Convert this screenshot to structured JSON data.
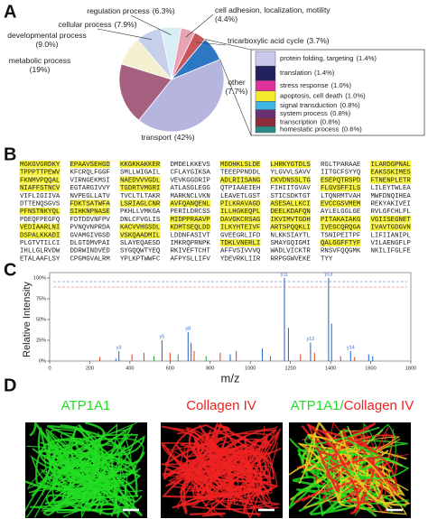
{
  "panel_labels": [
    "A",
    "B",
    "C",
    "D"
  ],
  "chart_data": [
    {
      "type": "pie",
      "categories": [
        "regulation process",
        "cell adhesion, localization, motility",
        "tricarboxylic acid cycle",
        "other",
        "transport",
        "metabolic process",
        "developmental process",
        "cellular process"
      ],
      "values": [
        6.3,
        4.4,
        3.7,
        7.7,
        42,
        19,
        9.0,
        7.9
      ],
      "value_labels": [
        "(6.3%)",
        "(4.4%)",
        "(3.7%)",
        "(7.7%)",
        "(42%)",
        "(19%)",
        "(9.0%)",
        "(7.9%)"
      ],
      "colors": [
        "#d9eef4",
        "#e7a2b4",
        "#c8545c",
        "#2d78c4",
        "#b6b5df",
        "#a4607e",
        "#f4f0d0",
        "#c7d0ea"
      ]
    },
    {
      "type": "stacked-bar",
      "categories": [
        "protein folding, targeting",
        "translation",
        "stress response",
        "apoptosis, cell death",
        "signal transduction",
        "system process",
        "transcription",
        "homestatic process"
      ],
      "values": [
        1.4,
        1.4,
        1.0,
        1.0,
        0.8,
        0.8,
        0.8,
        0.6
      ],
      "value_labels": [
        "(1.4%)",
        "(1.4%)",
        "(1.0%)",
        "(1.0%)",
        "(0.8%)",
        "(0.8%)",
        "(0.8%)",
        "(0.6%)"
      ],
      "colors": [
        "#c9c9ee",
        "#23225e",
        "#e0329c",
        "#f5e92c",
        "#3cb7e3",
        "#6b2f74",
        "#8e2c3c",
        "#2a8a8a"
      ]
    },
    {
      "type": "bar",
      "x_label": "m/z",
      "y_label": "Relative Intensity",
      "x": [
        250,
        330,
        345,
        410,
        470,
        520,
        560,
        600,
        640,
        690,
        705,
        720,
        780,
        850,
        900,
        930,
        1060,
        1100,
        1170,
        1190,
        1250,
        1300,
        1320,
        1390,
        1405,
        1450,
        1500,
        1520,
        1590,
        1610
      ],
      "values": [
        5,
        3,
        12,
        8,
        10,
        6,
        25,
        10,
        8,
        35,
        22,
        12,
        6,
        10,
        8,
        12,
        15,
        6,
        100,
        40,
        8,
        22,
        10,
        100,
        45,
        6,
        12,
        5,
        8,
        6
      ],
      "colors": [
        "#e05030",
        "#2f6fd0",
        "#2f6fd0",
        "#e05030",
        "#e05030",
        "#39a845",
        "#2f6fd0",
        "#e05030",
        "#39a845",
        "#2f6fd0",
        "#2f6fd0",
        "#e05030",
        "#39a845",
        "#e05030",
        "#2f6fd0",
        "#e05030",
        "#2f6fd0",
        "#e05030",
        "#2f6fd0",
        "#2f6fd0",
        "#e05030",
        "#2f6fd0",
        "#e05030",
        "#2f6fd0",
        "#2f6fd0",
        "#e05030",
        "#2f6fd0",
        "#e05030",
        "#2f6fd0",
        "#2f6fd0"
      ],
      "peak_labels": [
        null,
        null,
        "y3",
        null,
        null,
        null,
        "y5",
        null,
        null,
        "y8",
        null,
        null,
        null,
        null,
        null,
        null,
        null,
        null,
        "y11",
        null,
        null,
        "y12",
        null,
        "y13",
        null,
        null,
        "y14",
        null,
        null,
        null
      ],
      "xlim": [
        0,
        1800
      ],
      "xticks": [
        0,
        200,
        400,
        600,
        800,
        1000,
        1200,
        1400,
        1600,
        1800
      ],
      "ylim": [
        0,
        100
      ],
      "yticks": [
        {
          "value": 0,
          "label": "0%"
        },
        {
          "value": 25,
          "label": "25%"
        },
        {
          "value": 50,
          "label": "50%"
        },
        {
          "value": 75,
          "label": "75%"
        },
        {
          "value": 100,
          "label": "100%"
        }
      ]
    }
  ],
  "sequence": {
    "rows": [
      [
        "MGKGVGRDKY",
        "EPAAVSEHGD",
        "KKGKKAKKER",
        "DMDELKKEVS",
        "MDDHKLSLDE",
        "LHRKYGTDLS",
        "RGLTPARAAE",
        "ILARDGPNAL"
      ],
      [
        "TPPPTTPEWV",
        "KFCRQLFGGF",
        "SMLLWIGAIL",
        "CFLAYGIKSA",
        "TEEEPPNDDL",
        "YLGVVLSAVV",
        "IITGCFSYYQ",
        "EAKSSKIMES"
      ],
      [
        "FKNMVPQQAL",
        "VIRNGEKMSI",
        "NAEDVVVGDL",
        "VEVKGGDRIP",
        "ADLRIISANG",
        "CKVDNSSLTG",
        "ESEPQTRSPD",
        "FTNENPLETR"
      ],
      [
        "NIAFFSTNCV",
        "EGTARGIVVY",
        "TGDRTVMGRI",
        "ATLASGLEGG",
        "QTPIAAEIEH",
        "FIHIITGVAV",
        "FLGVSFFILS",
        "LILEYTWLEA"
      ],
      [
        "VIFLIGIIVA",
        "NVPEGLLATV",
        "TVCLTLTAKR",
        "MARKNCLVKN",
        "LEAVETLGST",
        "STICSDKTGT",
        "LTQNRMTVAH",
        "MWFDNQIHEA"
      ],
      [
        "DTTENQSGVS",
        "FDKTSATWFA",
        "LSRIAGLCNR",
        "AVFQANQENL",
        "PILKRAVAGD",
        "ASESALLKCI",
        "EVCCGSVMEM",
        "REKYAKIVEI"
      ],
      [
        "PFNSTNKYQL",
        "SIHKNPNASE",
        "PKHLLVMKGA",
        "PERILDRCSS",
        "ILLHGKEQPL",
        "DEELKDAFQN",
        "AYLELGGLGE",
        "RVLGFCHLFL"
      ],
      [
        "PDEQFPEGFQ",
        "FDTDDVNFPV",
        "DNLCFVGLIS",
        "MIDPPRAAVP",
        "DAVGKCRSAG",
        "IKVIMVTGDH",
        "PITAKAIAKG",
        "VGIISEGNET"
      ],
      [
        "VEDIAARLNI",
        "PVNQVNPRDA",
        "KACVVHGSDL",
        "KDMTSEQLDD",
        "ILKYHTEIVF",
        "ARTSPQQKLI",
        "IVEGCQRQGA",
        "IVAVTGDGVN"
      ],
      [
        "DSPALKKADI",
        "GVAMGIVGSD",
        "VSKQAADMIL",
        "LDDNFASIVT",
        "GVEEGRLIFD",
        "NLKKSIAYTL",
        "TSNIPEITPF",
        "LIFIIANIPL"
      ],
      [
        "PLGTVTILCI",
        "DLGTDMVPAI",
        "SLAYEQAESD",
        "IMKRQPRNPK",
        "TDKLVNERLI",
        "SMAYGQIGMI",
        "QALGGFFTYF",
        "VILAENGFLP"
      ],
      [
        "IHLLGLRVDW",
        "DDRWINDVED",
        "SYGQQWTYEQ",
        "RKIVEFTCHT",
        "AFFVSIVVVQ",
        "WADLVICKTR",
        "RNSVFQQGMK",
        "NKILIFGLFE"
      ],
      [
        "ETALAAFLSY",
        "CPGMGVALRM",
        "YPLKPTWWFC",
        "AFPYSLLIFV",
        "YDEVRKLIIR",
        "RRPGGWVEKE",
        "TYY"
      ]
    ]
  },
  "images": [
    {
      "label": "ATP1A1",
      "color": "#22dd22"
    },
    {
      "label": "Collagen IV",
      "color": "#ee2222"
    },
    {
      "labels": [
        "ATP1A1/",
        "Collagen IV"
      ],
      "colors": [
        "#22dd22",
        "#ee2222"
      ]
    }
  ]
}
